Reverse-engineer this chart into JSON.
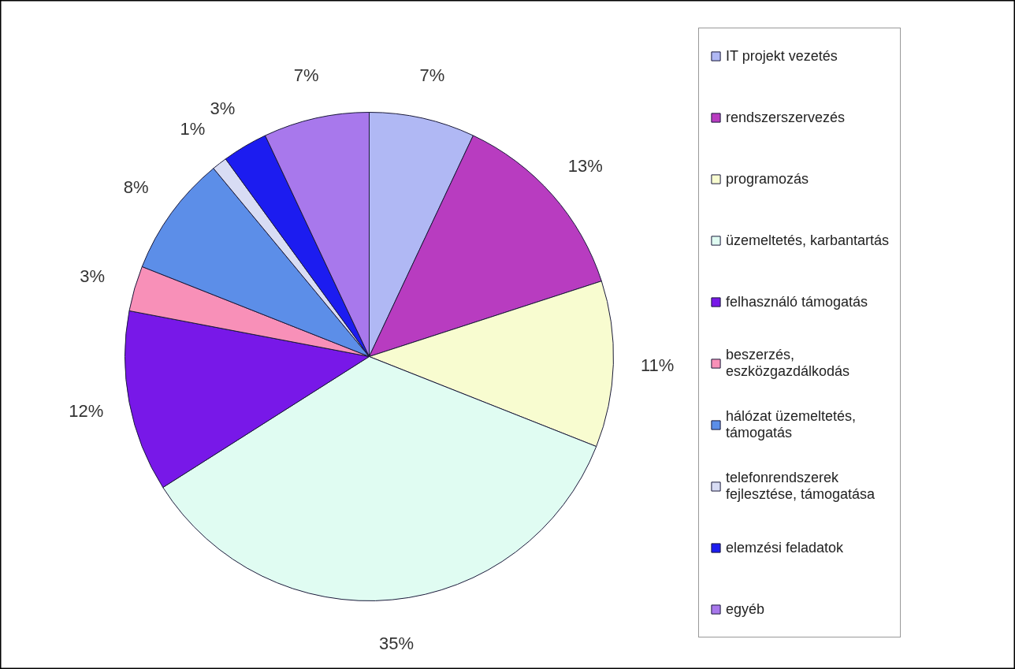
{
  "chart_data": {
    "type": "pie",
    "categories": [
      "IT projekt vezetés",
      "rendszerszervezés",
      "programozás",
      "üzemeltetés, karbantartás",
      "felhasználó támogatás",
      "beszerzés, eszközgazdálkodás",
      "hálózat üzemeltetés, támogatás",
      "telefonrendszerek fejlesztése, támogatása",
      "elemzési feladatok",
      "egyéb"
    ],
    "values": [
      7,
      13,
      11,
      35,
      12,
      3,
      8,
      1,
      3,
      7
    ],
    "colors": [
      "#b0b8f4",
      "#b83cc0",
      "#f8fcd0",
      "#e0fcf2",
      "#7818e8",
      "#f890b8",
      "#5c8ee8",
      "#d8dcf4",
      "#1c1cf0",
      "#a878ec"
    ],
    "value_labels": [
      "7%",
      "13%",
      "11%",
      "35%",
      "12%",
      "3%",
      "8%",
      "1%",
      "3%",
      "7%"
    ],
    "legend": "right"
  }
}
